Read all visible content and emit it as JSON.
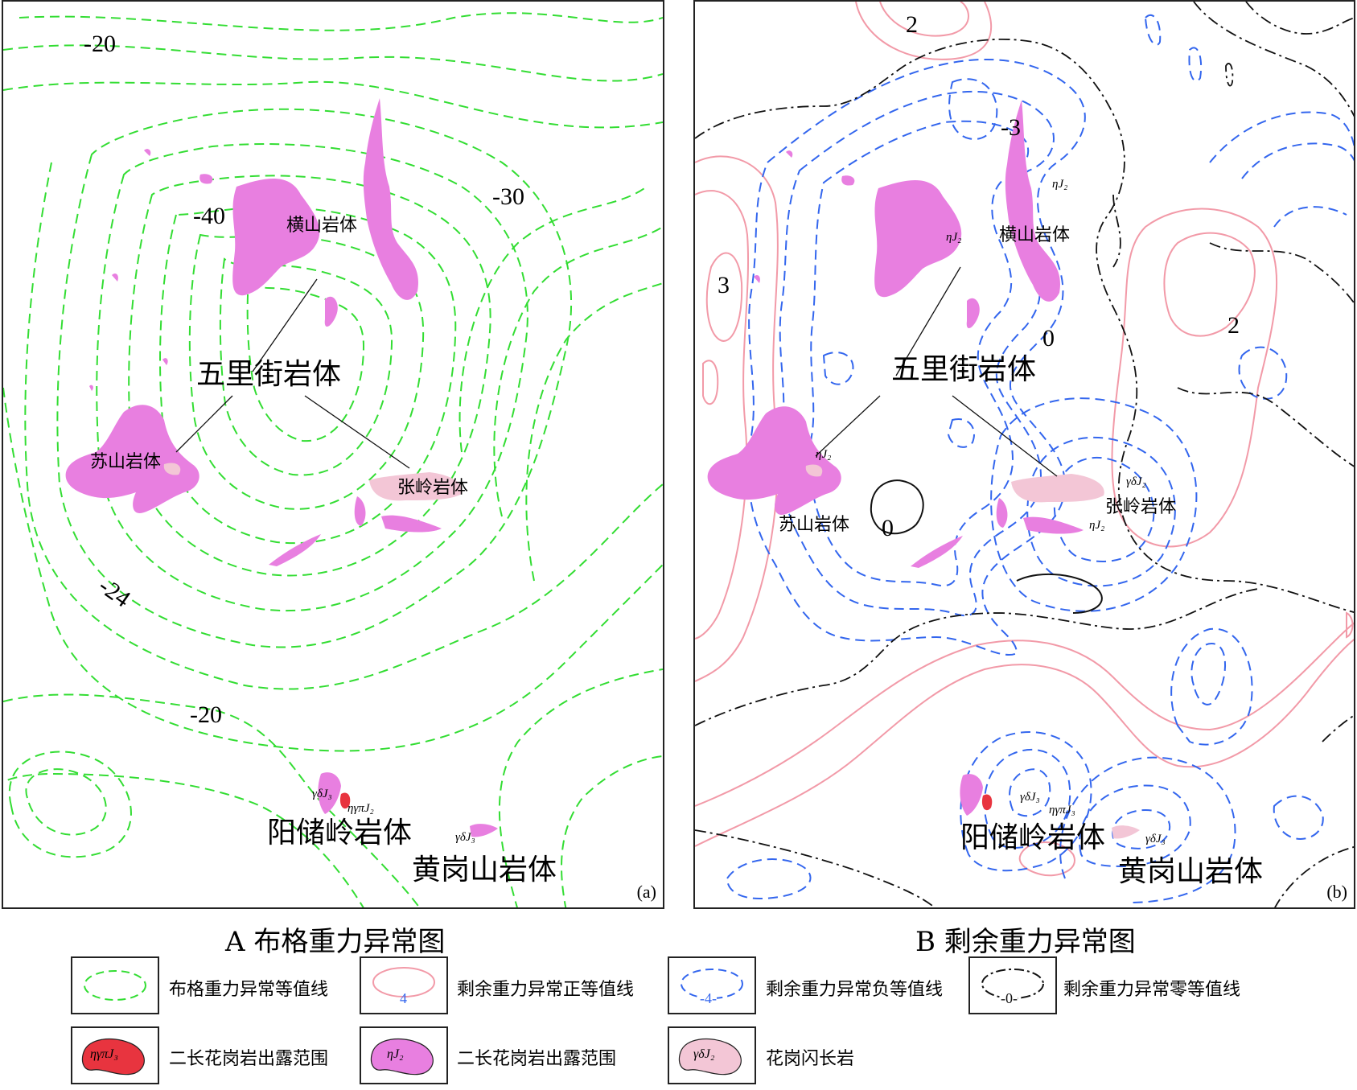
{
  "panel_a": {
    "corner_label": "(a)",
    "contour_labels": [
      "-20",
      "-40",
      "-30",
      "-24",
      "-20"
    ],
    "bodies": {
      "hengshan": "横山岩体",
      "wulijie": "五里街岩体",
      "sushan": "苏山岩体",
      "zhangling": "张岭岩体",
      "yangchuling": "阳储岭岩体",
      "huanggangshan": "黄岗山岩体"
    },
    "rock_codes": [
      "γδJ₃",
      "ηγπJ₂",
      "γδJ₃"
    ]
  },
  "panel_b": {
    "corner_label": "(b)",
    "contour_labels": [
      "2",
      "-3",
      "3",
      "2",
      "0",
      "0"
    ],
    "bodies": {
      "hengshan": "横山岩体",
      "wulijie": "五里街岩体",
      "sushan": "苏山岩体",
      "zhangling": "张岭岩体",
      "yangchuling": "阳储岭岩体",
      "huanggangshan": "黄岗山岩体"
    },
    "rock_codes": [
      "ηJ₂",
      "ηJ₂",
      "ηJ₂",
      "γδJ₂",
      "ηJ₂",
      "γδJ₃",
      "ηγπJ₃",
      "γδJ₃"
    ]
  },
  "captions": {
    "a": "A  布格重力异常图",
    "b": "B  剩余重力异常图"
  },
  "legend": [
    {
      "symbol_text": "",
      "label": "布格重力异常等值线"
    },
    {
      "symbol_text": "4",
      "label": "剩余重力异常正等值线"
    },
    {
      "symbol_text": "-4-",
      "label": "剩余重力异常负等值线"
    },
    {
      "symbol_text": "-0-",
      "label": "剩余重力异常零等值线"
    },
    {
      "symbol_text": "ηγπJ₃",
      "label": "二长花岗岩出露范围"
    },
    {
      "symbol_text": "ηJ₂",
      "label": "二长花岗岩出露范围"
    },
    {
      "symbol_text": "γδJ₂",
      "label": "花岗闪长岩"
    }
  ],
  "colors": {
    "bouguer": "#33dd33",
    "positive": "#f29aa8",
    "negative": "#3366ee",
    "zero": "#111111",
    "monzogranite_j2": "#e87fe0",
    "monzogranite_j3": "#e8343f",
    "granodiorite": "#f3c6d6"
  }
}
